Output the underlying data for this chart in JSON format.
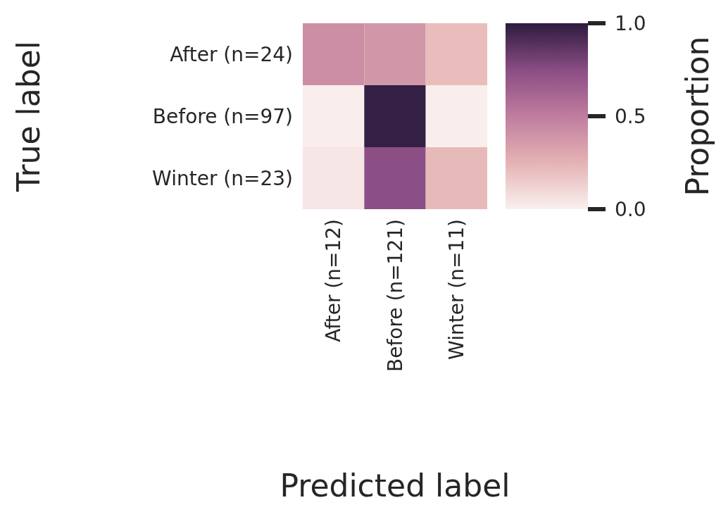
{
  "chart_data": {
    "type": "heatmap",
    "xlabel": "Predicted label",
    "ylabel": "True label",
    "clabel": "Proportion",
    "categories": [
      "After (n=12)",
      "Before (n=121)",
      "Winter (n=11)"
    ],
    "y_categories": [
      "After (n=24)",
      "Before (n=97)",
      "Winter (n=23)"
    ],
    "cells": [
      [
        0.42,
        0.38,
        0.21
      ],
      [
        0.01,
        0.98,
        0.01
      ],
      [
        0.04,
        0.74,
        0.22
      ]
    ],
    "clim": [
      0,
      1
    ],
    "cticks": [
      {
        "value": 0,
        "label": "0.0"
      },
      {
        "value": 0.5,
        "label": "0.5"
      },
      {
        "value": 1,
        "label": "1.0"
      }
    ]
  }
}
